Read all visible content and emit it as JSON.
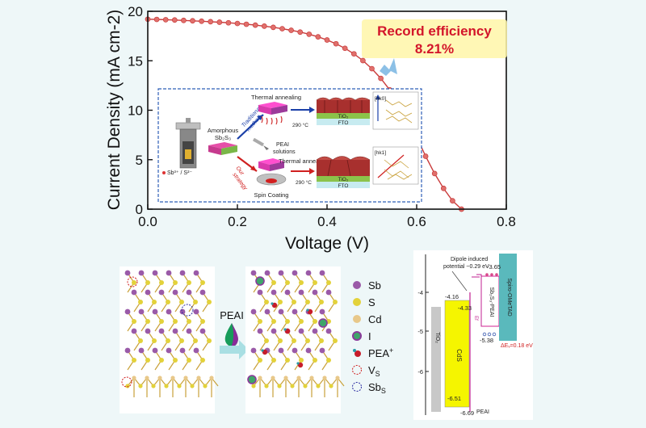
{
  "colors": {
    "background": "#eef7f8",
    "curve": "#c93a3a",
    "marker": "#e0706c",
    "badge_text": "#d3152a",
    "badge_fill": "#fff6a8",
    "inset_border": "#2f5fb8",
    "cds": "#f5f500",
    "sb2s3": "#ffffff",
    "spiro": "#5ab9bc",
    "tio2": "#c8c8c8"
  },
  "chart_data": {
    "type": "line",
    "xlabel": "Voltage (V)",
    "ylabel": "Current Density (mA cm-2)",
    "xlim": [
      0,
      0.8
    ],
    "ylim": [
      0,
      20
    ],
    "xticks": [
      "0.0",
      "0.2",
      "0.4",
      "0.6",
      "0.8"
    ],
    "yticks": [
      "0",
      "5",
      "10",
      "15",
      "20"
    ],
    "series": [
      {
        "x": [
          0.0,
          0.02,
          0.04,
          0.06,
          0.08,
          0.1,
          0.12,
          0.14,
          0.16,
          0.18,
          0.2,
          0.22,
          0.24,
          0.26,
          0.28,
          0.3,
          0.32,
          0.34,
          0.36,
          0.38,
          0.4,
          0.42,
          0.44,
          0.46,
          0.48,
          0.5,
          0.52,
          0.54,
          0.56,
          0.58,
          0.6,
          0.62,
          0.64,
          0.66,
          0.68,
          0.7
        ],
        "y": [
          19.2,
          19.18,
          19.15,
          19.12,
          19.08,
          19.04,
          19.0,
          18.95,
          18.9,
          18.84,
          18.77,
          18.69,
          18.6,
          18.5,
          18.38,
          18.24,
          18.08,
          17.9,
          17.68,
          17.42,
          17.1,
          16.72,
          16.26,
          15.7,
          15.02,
          14.2,
          13.22,
          12.05,
          10.7,
          9.1,
          7.3,
          5.35,
          3.6,
          2.1,
          0.85,
          0.0
        ]
      }
    ]
  },
  "badge": {
    "line1": "Record efficiency",
    "line2": "8.21%"
  },
  "inset": {
    "precursor_label": "Sb³⁺ / S²⁻",
    "amorphous_label_1": "Amorphous",
    "amorphous_label_2": "Sb₂S₃",
    "traditional_label_1": "Traditional",
    "traditional_label_2": "method",
    "our_label_1": "Our",
    "our_label_2": "strategy",
    "pea_solution_1": "PEAI",
    "pea_solution_2": "solutions",
    "spin_coating": "Spin Coating",
    "thermal_top": "Thermal annealing",
    "thermal_bottom": "Thermal annealing",
    "temp_top": "290 °C",
    "temp_bottom": "290 °C",
    "tio2_top": "TiO₂",
    "fto_top": "FTO",
    "tio2_bottom": "TiO₂",
    "fto_bottom": "FTO",
    "hk0": "[hk0]",
    "hk1": "[hk1]"
  },
  "structure": {
    "pea_label": "PEAI",
    "legend": [
      {
        "label": "Sb",
        "sup": ""
      },
      {
        "label": "S",
        "sup": ""
      },
      {
        "label": "Cd",
        "sup": ""
      },
      {
        "label": "I",
        "sup": ""
      },
      {
        "label": "PEA",
        "sup": "+"
      },
      {
        "label": "V",
        "sup": "S"
      },
      {
        "label": "Sb",
        "sup": "S"
      }
    ]
  },
  "energy": {
    "dipole_1": "Dipole induced",
    "dipole_2": "potential ~0.29 eV",
    "tio2": "TiO₂",
    "cds": "CdS",
    "sb2s3": "Sb₂S₃-PEAI",
    "spiro": "Spiro-OMeTAD",
    "pea": "PEAI",
    "ef": "Ef",
    "delta_ev": "ΔEᵥ=0.18 eV",
    "yticks": [
      "-4",
      "-5",
      "-6"
    ],
    "values": {
      "v365": "-3.65",
      "v416": "-4.16",
      "v433": "-4.33",
      "v538": "-5.38",
      "v651": "-6.51",
      "v669": "-6.69"
    }
  }
}
